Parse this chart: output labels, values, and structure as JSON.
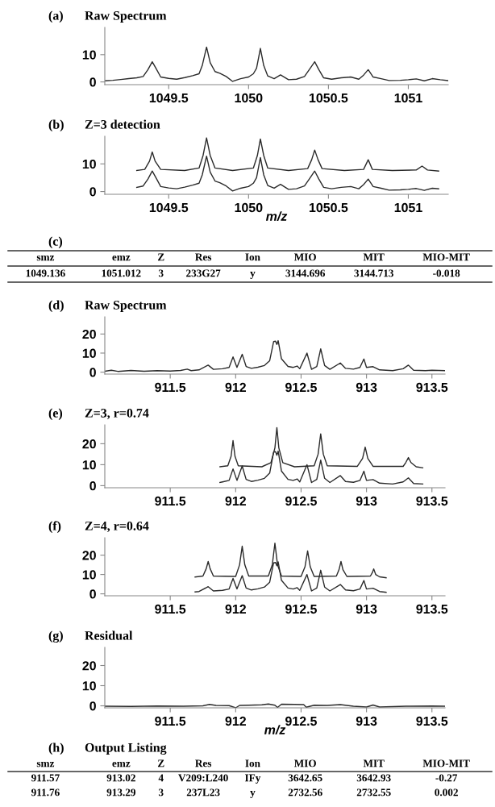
{
  "chart_data": [
    {
      "type": "line",
      "title": "(a)",
      "subtitle": "Raw Spectrum",
      "xlim": [
        1049.1,
        1051.25
      ],
      "ylim": [
        -1,
        20
      ],
      "xticks": [
        1049.5,
        1050,
        1050.5,
        1051
      ],
      "yticks": [
        0,
        10
      ],
      "series": [
        {
          "color": "#2a2a2a",
          "x": [
            1049.1,
            1049.15,
            1049.2,
            1049.25,
            1049.3,
            1049.34,
            1049.37,
            1049.397,
            1049.42,
            1049.45,
            1049.5,
            1049.55,
            1049.6,
            1049.65,
            1049.69,
            1049.71,
            1049.737,
            1049.76,
            1049.79,
            1049.82,
            1049.86,
            1049.9,
            1049.95,
            1050.0,
            1050.03,
            1050.05,
            1050.074,
            1050.095,
            1050.12,
            1050.16,
            1050.2,
            1050.25,
            1050.3,
            1050.35,
            1050.38,
            1050.414,
            1050.44,
            1050.47,
            1050.52,
            1050.58,
            1050.64,
            1050.69,
            1050.72,
            1050.749,
            1050.78,
            1050.83,
            1050.88,
            1050.95,
            1051.0,
            1051.05,
            1051.1,
            1051.15,
            1051.2,
            1051.25
          ],
          "values": [
            0.4,
            0.6,
            0.9,
            1.2,
            1.5,
            2.0,
            4.5,
            7.4,
            5,
            1.8,
            1.3,
            1.0,
            1.6,
            2.3,
            3.0,
            6,
            12.8,
            7,
            3.8,
            3.2,
            2.0,
            0.2,
            1.2,
            1.8,
            3.0,
            5,
            12.3,
            6,
            2.2,
            1.2,
            2.6,
            0.8,
            1.0,
            2.0,
            4.5,
            7.4,
            4.5,
            1.5,
            1.0,
            1.5,
            1.8,
            1.0,
            2.5,
            4.5,
            1.8,
            1.2,
            0.5,
            0.6,
            0.8,
            1.1,
            0.4,
            1.2,
            0.8,
            0.5
          ]
        }
      ]
    },
    {
      "type": "line",
      "title": "(b)",
      "subtitle": "Z=3 detection",
      "xlabel": "m/z",
      "xlim": [
        1049.1,
        1051.25
      ],
      "ylim": [
        -1,
        20
      ],
      "xticks": [
        1049.5,
        1050,
        1050.5,
        1051
      ],
      "yticks": [
        0,
        10
      ],
      "series": [
        {
          "color": "#2a2a2a",
          "x": [
            1049.3,
            1049.35,
            1049.38,
            1049.397,
            1049.415,
            1049.45,
            1049.6,
            1049.69,
            1049.715,
            1049.737,
            1049.76,
            1049.79,
            1049.9,
            1050.03,
            1050.055,
            1050.074,
            1050.095,
            1050.12,
            1050.25,
            1050.37,
            1050.395,
            1050.414,
            1050.435,
            1050.46,
            1050.6,
            1050.72,
            1050.749,
            1050.775,
            1050.9,
            1051.05,
            1051.086,
            1051.12,
            1051.19
          ],
          "values": [
            7.6,
            8.0,
            11,
            14.3,
            11,
            8,
            7.6,
            8.5,
            13,
            19.4,
            13,
            8.5,
            7.6,
            8.5,
            13,
            19,
            13,
            8.5,
            7.6,
            8.3,
            11.5,
            15,
            11.5,
            8.3,
            7.6,
            8,
            11.5,
            8,
            7.6,
            7.8,
            9.2,
            7.8,
            7.4
          ]
        },
        {
          "color": "#2a2a2a",
          "x": [
            1049.3,
            1049.34,
            1049.37,
            1049.397,
            1049.42,
            1049.45,
            1049.5,
            1049.55,
            1049.6,
            1049.65,
            1049.69,
            1049.71,
            1049.737,
            1049.76,
            1049.79,
            1049.82,
            1049.86,
            1049.9,
            1049.95,
            1050.0,
            1050.03,
            1050.05,
            1050.074,
            1050.095,
            1050.12,
            1050.16,
            1050.2,
            1050.25,
            1050.3,
            1050.35,
            1050.38,
            1050.414,
            1050.44,
            1050.47,
            1050.52,
            1050.58,
            1050.64,
            1050.69,
            1050.72,
            1050.749,
            1050.78,
            1050.83,
            1050.88,
            1050.95,
            1051.0,
            1051.05,
            1051.1,
            1051.15,
            1051.19
          ],
          "values": [
            1.5,
            2.0,
            4.5,
            7.4,
            5,
            1.8,
            1.3,
            1.0,
            1.6,
            2.3,
            3.0,
            6,
            12.8,
            7,
            3.8,
            3.2,
            2.0,
            0.2,
            1.2,
            1.8,
            3.0,
            5,
            12.3,
            6,
            2.2,
            1.2,
            2.6,
            0.8,
            1.0,
            2.0,
            4.5,
            7.4,
            4.5,
            1.5,
            1.0,
            1.5,
            1.8,
            1.0,
            2.5,
            4.5,
            1.8,
            1.2,
            0.5,
            0.6,
            0.8,
            1.1,
            0.4,
            1.2,
            1.0
          ]
        }
      ]
    },
    {
      "type": "other",
      "title": "(c)",
      "annotations": [
        "smz",
        "emz",
        "Z",
        "Res",
        "Ion",
        "MIO",
        "MIT",
        "MIO-MIT",
        "1049.136",
        "1051.012",
        "3",
        "233G27",
        "y",
        "3144.696",
        "3144.713",
        "-0.018"
      ]
    },
    {
      "type": "line",
      "title": "(d)",
      "subtitle": "Raw Spectrum",
      "xlim": [
        911.0,
        913.6
      ],
      "ylim": [
        -1,
        29
      ],
      "xticks": [
        911.5,
        912,
        912.5,
        913,
        913.5
      ],
      "yticks": [
        0,
        10,
        20
      ],
      "series": [
        {
          "color": "#2a2a2a",
          "x": [
            911.0,
            911.05,
            911.1,
            911.2,
            911.3,
            911.4,
            911.5,
            911.58,
            911.63,
            911.66,
            911.72,
            911.79,
            911.83,
            911.9,
            911.95,
            911.98,
            912.01,
            912.05,
            912.08,
            912.12,
            912.17,
            912.22,
            912.26,
            912.29,
            912.305,
            912.315,
            912.325,
            912.35,
            912.4,
            912.44,
            912.47,
            912.49,
            912.545,
            912.58,
            912.62,
            912.65,
            912.68,
            912.72,
            912.8,
            912.84,
            912.9,
            912.95,
            912.98,
            913.0,
            913.05,
            913.1,
            913.2,
            913.28,
            913.32,
            913.36,
            913.45,
            913.5,
            913.6
          ],
          "values": [
            0.5,
            1,
            0.4,
            0.9,
            0.5,
            0.8,
            0.6,
            0.9,
            1.6,
            0.8,
            1.2,
            3.7,
            1.5,
            1.8,
            2.5,
            8,
            2.5,
            9.4,
            3.0,
            2.0,
            2.6,
            3.5,
            6,
            16,
            16.2,
            14.5,
            16.5,
            7,
            3.0,
            2.5,
            3.2,
            1.8,
            10,
            1.5,
            3,
            12.2,
            3.5,
            1.5,
            4.8,
            2.0,
            1.6,
            2.5,
            6.9,
            2.5,
            2.9,
            1.2,
            0.8,
            1.8,
            3.7,
            1.0,
            0.8,
            1.0,
            0.8
          ]
        }
      ]
    },
    {
      "type": "line",
      "title": "(e)",
      "subtitle": "Z=3, r=0.74",
      "xlim": [
        911.0,
        913.6
      ],
      "ylim": [
        -1,
        29
      ],
      "xticks": [
        911.5,
        912,
        912.5,
        913,
        913.5
      ],
      "yticks": [
        0,
        10,
        20
      ],
      "series": [
        {
          "color": "#2a2a2a",
          "x": [
            911.88,
            911.94,
            911.965,
            911.98,
            911.995,
            912.02,
            912.2,
            912.27,
            912.3,
            912.315,
            912.33,
            912.36,
            912.45,
            912.6,
            912.63,
            912.65,
            912.67,
            912.7,
            912.93,
            912.97,
            912.99,
            913.01,
            913.05,
            913.28,
            913.3,
            913.32,
            913.34,
            913.38,
            913.43
          ],
          "values": [
            9,
            9.5,
            14,
            21.5,
            14,
            9.5,
            9,
            11,
            18,
            27.7,
            18,
            11,
            9,
            9.5,
            15,
            24.7,
            15,
            9.5,
            9.2,
            13,
            18.4,
            13,
            9.2,
            9.2,
            11,
            13.4,
            11,
            9,
            8.5
          ]
        },
        {
          "color": "#2a2a2a",
          "x": [
            911.88,
            911.9,
            911.95,
            911.98,
            912.01,
            912.05,
            912.08,
            912.12,
            912.17,
            912.22,
            912.26,
            912.29,
            912.305,
            912.315,
            912.325,
            912.35,
            912.4,
            912.44,
            912.47,
            912.49,
            912.545,
            912.58,
            912.62,
            912.65,
            912.68,
            912.72,
            912.8,
            912.84,
            912.9,
            912.95,
            912.98,
            913.0,
            913.05,
            913.1,
            913.2,
            913.28,
            913.32,
            913.36,
            913.43
          ],
          "values": [
            1.5,
            1.8,
            2.5,
            8,
            2.5,
            9.4,
            3.0,
            2.0,
            2.6,
            3.5,
            6,
            16,
            16.2,
            14.5,
            16.5,
            7,
            3.0,
            2.5,
            3.2,
            1.8,
            10,
            1.5,
            3,
            12.2,
            3.5,
            1.5,
            4.8,
            2.0,
            1.6,
            2.5,
            6.9,
            2.5,
            2.9,
            1.2,
            0.8,
            1.8,
            3.7,
            1.0,
            0.8
          ]
        }
      ]
    },
    {
      "type": "line",
      "title": "(f)",
      "subtitle": "Z=4, r=0.64",
      "xlim": [
        911.0,
        913.6
      ],
      "ylim": [
        -1,
        29
      ],
      "xticks": [
        911.5,
        912,
        912.5,
        913,
        913.5
      ],
      "yticks": [
        0,
        10,
        20
      ],
      "series": [
        {
          "color": "#2a2a2a",
          "x": [
            911.69,
            911.75,
            911.775,
            911.79,
            911.805,
            911.83,
            912.0,
            912.03,
            912.05,
            912.07,
            912.1,
            912.25,
            912.28,
            912.3,
            912.32,
            912.35,
            912.5,
            912.53,
            912.55,
            912.57,
            912.6,
            912.77,
            912.79,
            912.805,
            912.82,
            912.85,
            913.03,
            913.045,
            913.055,
            913.07,
            913.1,
            913.15
          ],
          "values": [
            8.7,
            9.2,
            13,
            16.7,
            13,
            9.2,
            9,
            15,
            24.6,
            15,
            9.2,
            9.2,
            15,
            26.2,
            15,
            9.2,
            9,
            14,
            22.2,
            14,
            9,
            9.2,
            12.5,
            16.7,
            12.5,
            9,
            9.2,
            11,
            12.9,
            10,
            8.8,
            8.3
          ]
        },
        {
          "color": "#2a2a2a",
          "x": [
            911.69,
            911.72,
            911.79,
            911.83,
            911.9,
            911.95,
            911.98,
            912.01,
            912.05,
            912.08,
            912.12,
            912.17,
            912.22,
            912.26,
            912.29,
            912.305,
            912.315,
            912.325,
            912.35,
            912.4,
            912.44,
            912.47,
            912.49,
            912.545,
            912.58,
            912.62,
            912.65,
            912.68,
            912.72,
            912.8,
            912.84,
            912.9,
            912.95,
            912.98,
            913.0,
            913.05,
            913.1,
            913.15
          ],
          "values": [
            1.0,
            1.2,
            3.7,
            1.5,
            1.8,
            2.5,
            8,
            2.5,
            9.4,
            3.0,
            2.0,
            2.6,
            3.5,
            6,
            16,
            16.2,
            14.5,
            16.5,
            7,
            3.0,
            2.5,
            3.2,
            1.8,
            10,
            1.5,
            3,
            12.2,
            3.5,
            1.5,
            4.8,
            2.0,
            1.6,
            2.5,
            6.9,
            2.5,
            2.9,
            1.2,
            0.8
          ]
        }
      ]
    },
    {
      "type": "line",
      "title": "(g)",
      "subtitle": "Residual",
      "xlabel": "m/z",
      "xlim": [
        911.0,
        913.6
      ],
      "ylim": [
        -1,
        29
      ],
      "xticks": [
        911.5,
        912,
        912.5,
        913,
        913.5
      ],
      "yticks": [
        0,
        10,
        20
      ],
      "series": [
        {
          "color": "#2a2a2a",
          "x": [
            911.0,
            911.2,
            911.4,
            911.6,
            911.75,
            911.8,
            911.85,
            911.95,
            912.0,
            912.03,
            912.1,
            912.2,
            912.25,
            912.3,
            912.32,
            912.35,
            912.45,
            912.52,
            912.54,
            912.6,
            912.7,
            912.8,
            912.9,
            913.0,
            913.05,
            913.1,
            913.3,
            913.5,
            913.6
          ],
          "values": [
            -0.2,
            -0.3,
            -0.1,
            -0.2,
            0,
            0.7,
            0.2,
            0.1,
            -1.0,
            0.2,
            0.3,
            0.5,
            0.9,
            0.3,
            -0.8,
            0.8,
            0.7,
            0.6,
            -0.7,
            0.3,
            0.2,
            0.6,
            -0.2,
            -0.6,
            0.4,
            -0.6,
            -0.2,
            -0.1,
            -0.2
          ]
        }
      ]
    },
    {
      "type": "other",
      "title": "(h)",
      "subtitle": "Output Listing",
      "annotations": [
        "smz",
        "emz",
        "Z",
        "Res",
        "Ion",
        "MIO",
        "MIT",
        "MIO-MIT",
        "911.57",
        "913.02",
        "4",
        "V209:L240",
        "IFy",
        "3642.65",
        "3642.93",
        "-0.27",
        "911.76",
        "913.29",
        "3",
        "237L23",
        "y",
        "2732.56",
        "2732.55",
        "0.002"
      ]
    }
  ]
}
